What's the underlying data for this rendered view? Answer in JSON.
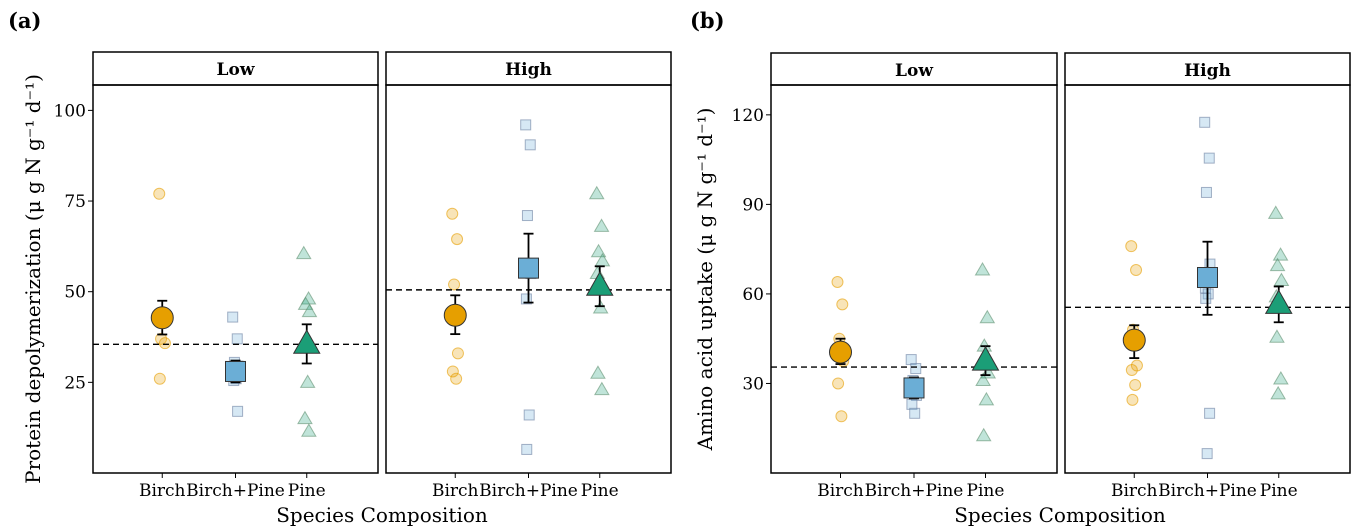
{
  "panels": [
    {
      "tag": "(a)",
      "ylabel": "Protein depolymerization",
      "yunit": "(μ g N g⁻¹ d⁻¹)",
      "xlabel": "Species Composition",
      "ylim": [
        0,
        107
      ],
      "yticks": [
        25,
        50,
        75,
        100
      ],
      "facets": [
        {
          "strip": "Low",
          "hline": 35.5,
          "groups": [
            {
              "category": "Birch",
              "shape": "circle",
              "color": "#E69F00",
              "mean": 42.8,
              "ci": [
                38.2,
                47.5
              ],
              "points": [
                77.0,
                43.0,
                37.0,
                35.8,
                26.0
              ]
            },
            {
              "category": "Birch+Pine",
              "shape": "square",
              "color": "#6BAED6",
              "mean": 28.0,
              "ci": [
                25.0,
                31.0
              ],
              "points": [
                43.0,
                37.0,
                30.5,
                29.5,
                28.5,
                26.0,
                25.5,
                17.0
              ]
            },
            {
              "category": "Pine",
              "shape": "triangle",
              "color": "#1B9E77",
              "mean": 35.5,
              "ci": [
                30.2,
                41.0
              ],
              "points": [
                60.5,
                48.0,
                46.5,
                44.5,
                36.0,
                25.0,
                15.0,
                11.5
              ]
            }
          ]
        },
        {
          "strip": "High",
          "hline": 50.5,
          "groups": [
            {
              "category": "Birch",
              "shape": "circle",
              "color": "#E69F00",
              "mean": 43.5,
              "ci": [
                38.3,
                49.0
              ],
              "points": [
                71.5,
                64.5,
                52.0,
                33.0,
                28.0,
                26.0
              ]
            },
            {
              "category": "Birch+Pine",
              "shape": "square",
              "color": "#6BAED6",
              "mean": 56.5,
              "ci": [
                47.0,
                66.0
              ],
              "points": [
                96.0,
                90.5,
                71.0,
                55.0,
                48.0,
                16.0,
                6.5
              ]
            },
            {
              "category": "Pine",
              "shape": "triangle",
              "color": "#1B9E77",
              "mean": 51.5,
              "ci": [
                46.0,
                57.0
              ],
              "points": [
                77.0,
                68.0,
                61.0,
                58.5,
                55.0,
                45.5,
                27.5,
                23.0
              ]
            }
          ]
        }
      ]
    },
    {
      "tag": "(b)",
      "ylabel": "Amino acid uptake",
      "yunit": "(μ g N g⁻¹ d⁻¹)",
      "xlabel": "Species Composition",
      "ylim": [
        0,
        130
      ],
      "yticks": [
        30,
        60,
        90,
        120
      ],
      "facets": [
        {
          "strip": "Low",
          "hline": 35.5,
          "groups": [
            {
              "category": "Birch",
              "shape": "circle",
              "color": "#E69F00",
              "mean": 40.5,
              "ci": [
                36.5,
                45.0
              ],
              "points": [
                64.0,
                56.5,
                45.0,
                37.5,
                30.0,
                19.0
              ]
            },
            {
              "category": "Birch+Pine",
              "shape": "square",
              "color": "#6BAED6",
              "mean": 28.5,
              "ci": [
                25.0,
                32.0
              ],
              "points": [
                38.0,
                35.0,
                31.0,
                26.0,
                23.0,
                20.0
              ]
            },
            {
              "category": "Pine",
              "shape": "triangle",
              "color": "#1B9E77",
              "mean": 37.5,
              "ci": [
                32.8,
                42.5
              ],
              "points": [
                68.0,
                52.0,
                42.5,
                33.5,
                31.0,
                24.5,
                12.5
              ]
            }
          ]
        },
        {
          "strip": "High",
          "hline": 55.5,
          "groups": [
            {
              "category": "Birch",
              "shape": "circle",
              "color": "#E69F00",
              "mean": 44.5,
              "ci": [
                38.5,
                49.5
              ],
              "points": [
                76.0,
                68.0,
                48.0,
                36.0,
                34.5,
                29.5,
                24.5
              ]
            },
            {
              "category": "Birch+Pine",
              "shape": "square",
              "color": "#6BAED6",
              "mean": 65.5,
              "ci": [
                53.0,
                77.5
              ],
              "points": [
                117.5,
                105.5,
                94.0,
                70.0,
                62.0,
                60.0,
                58.5,
                20.0,
                6.5
              ]
            },
            {
              "category": "Pine",
              "shape": "triangle",
              "color": "#1B9E77",
              "mean": 56.5,
              "ci": [
                50.5,
                62.5
              ],
              "points": [
                87.0,
                73.0,
                69.5,
                64.5,
                59.0,
                56.0,
                45.5,
                31.5,
                26.5
              ]
            }
          ]
        }
      ]
    }
  ],
  "colors": {
    "birch": "#E69F00",
    "birch_pine": "#6BAED6",
    "pine": "#1B9E77",
    "raw_alpha": 0.28,
    "hline": "#000000"
  }
}
